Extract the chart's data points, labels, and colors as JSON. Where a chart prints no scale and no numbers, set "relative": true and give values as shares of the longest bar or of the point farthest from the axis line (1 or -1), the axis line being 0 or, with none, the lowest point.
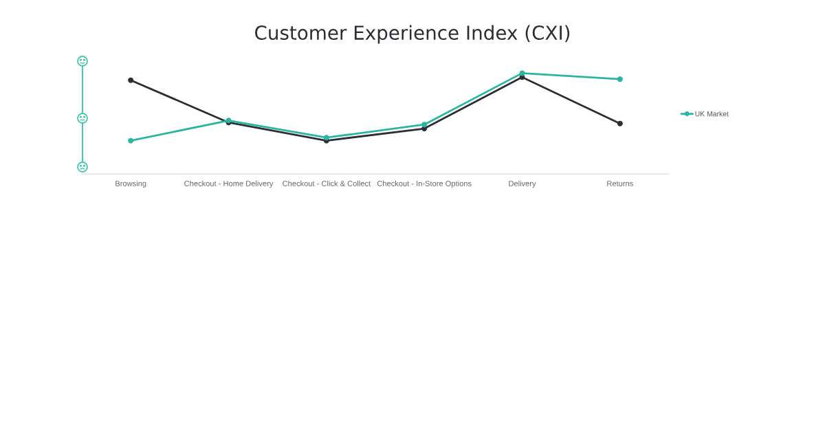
{
  "chart_data": {
    "type": "line",
    "title": "Customer Experience Index (CXI)",
    "categories": [
      "Browsing",
      "Checkout - Home Delivery",
      "Checkout - Click & Collect",
      "Checkout - In-Store Options",
      "Delivery",
      "Returns"
    ],
    "relative": true,
    "marker": "circle",
    "line_style": "solid",
    "legend": "right",
    "grid": false,
    "series": [
      {
        "color": "#2b2f33",
        "values": [
          0.93,
          0.51,
          0.33,
          0.45,
          0.96,
          0.5
        ]
      },
      {
        "name": "UK Market",
        "color": "#2bb5a0",
        "values": [
          0.33,
          0.53,
          0.36,
          0.49,
          1,
          0.94
        ]
      }
    ]
  }
}
